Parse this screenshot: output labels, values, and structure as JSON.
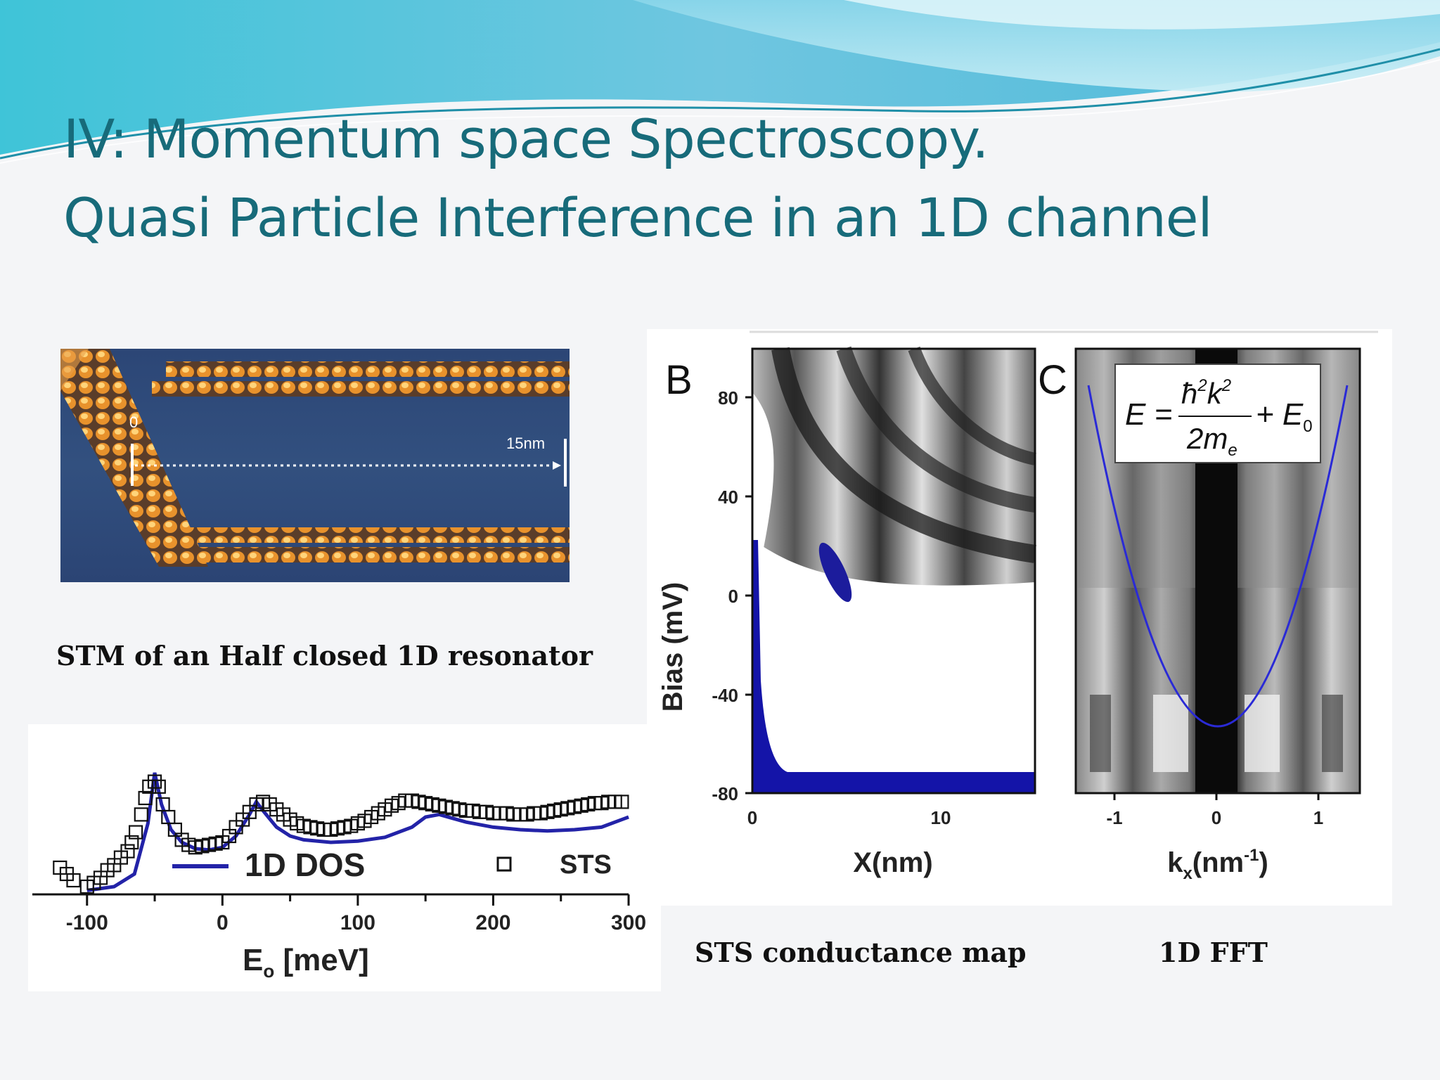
{
  "title": {
    "line1": "IV: Momentum space Spectroscopy.",
    "line2": "Quasi Particle Interference in an 1D channel"
  },
  "stm": {
    "caption": "STM of an Half closed 1D resonator",
    "label_zero": "0",
    "label_scale": "15nm"
  },
  "sts_map": {
    "caption": "STS conductance map",
    "panel_letter": "B",
    "xlabel": "X(nm)",
    "ylabel": "Bias (mV)",
    "x_ticks": [
      "0",
      "10"
    ],
    "y_ticks": [
      "80",
      "40",
      "0",
      "-40",
      "-80"
    ]
  },
  "fft": {
    "caption": "1D FFT",
    "panel_letter": "C",
    "xlabel": "kx(nm-1)",
    "x_ticks": [
      "-1",
      "0",
      "1"
    ],
    "equation": "E = ħ²k²/2mₑ + E₀"
  },
  "chart_data": [
    {
      "type": "line",
      "xlabel": "Eo [meV]",
      "ylabel": "",
      "xlim": [
        -130,
        300
      ],
      "x_ticks": [
        "-100",
        "0",
        "100",
        "200",
        "300"
      ],
      "legend_position": "inside-top",
      "series": [
        {
          "name": "1D DOS",
          "style": "line",
          "color": "#2323a8",
          "x": [
            -100,
            -80,
            -65,
            -55,
            -50,
            -45,
            -38,
            -30,
            -20,
            -10,
            0,
            10,
            20,
            25,
            30,
            40,
            50,
            60,
            80,
            100,
            120,
            140,
            150,
            160,
            180,
            200,
            220,
            240,
            260,
            280,
            300
          ],
          "y": [
            0.02,
            0.05,
            0.15,
            0.55,
            0.95,
            0.7,
            0.5,
            0.4,
            0.35,
            0.34,
            0.36,
            0.45,
            0.62,
            0.72,
            0.65,
            0.52,
            0.45,
            0.42,
            0.4,
            0.41,
            0.44,
            0.52,
            0.6,
            0.62,
            0.56,
            0.52,
            0.5,
            0.49,
            0.5,
            0.52,
            0.6
          ]
        },
        {
          "name": "STS",
          "style": "square-markers",
          "color": "#111111",
          "x": [
            -120,
            -115,
            -110,
            -100,
            -95,
            -90,
            -85,
            -80,
            -75,
            -70,
            -67,
            -64,
            -60,
            -57,
            -54,
            -50,
            -47,
            -44,
            -40,
            -35,
            -30,
            -25,
            -20,
            -15,
            -10,
            -5,
            0,
            5,
            10,
            15,
            20,
            25,
            30,
            35,
            40,
            45,
            50,
            55,
            60,
            65,
            70,
            75,
            80,
            85,
            90,
            95,
            100,
            105,
            110,
            115,
            120,
            125,
            130,
            135,
            140,
            145,
            150,
            155,
            160,
            165,
            170,
            175,
            180,
            185,
            190,
            195,
            200,
            205,
            210,
            215,
            220,
            225,
            230,
            235,
            240,
            245,
            250,
            255,
            260,
            265,
            270,
            275,
            280,
            285,
            290,
            295
          ],
          "y": [
            0.2,
            0.15,
            0.1,
            0.05,
            0.08,
            0.12,
            0.18,
            0.22,
            0.28,
            0.33,
            0.4,
            0.48,
            0.62,
            0.75,
            0.84,
            0.88,
            0.84,
            0.7,
            0.6,
            0.5,
            0.42,
            0.38,
            0.36,
            0.37,
            0.38,
            0.39,
            0.4,
            0.45,
            0.52,
            0.58,
            0.64,
            0.7,
            0.72,
            0.7,
            0.66,
            0.62,
            0.58,
            0.55,
            0.53,
            0.52,
            0.51,
            0.5,
            0.5,
            0.51,
            0.52,
            0.53,
            0.55,
            0.57,
            0.6,
            0.63,
            0.66,
            0.69,
            0.71,
            0.73,
            0.73,
            0.72,
            0.71,
            0.7,
            0.69,
            0.68,
            0.67,
            0.66,
            0.65,
            0.65,
            0.64,
            0.64,
            0.63,
            0.63,
            0.63,
            0.62,
            0.62,
            0.62,
            0.63,
            0.63,
            0.64,
            0.65,
            0.66,
            0.67,
            0.68,
            0.69,
            0.7,
            0.71,
            0.71,
            0.72,
            0.72,
            0.72
          ]
        }
      ]
    },
    {
      "type": "heatmap",
      "xlabel": "X(nm)",
      "ylabel": "Bias (mV)",
      "xlim": [
        0,
        15
      ],
      "ylim": [
        -80,
        100
      ],
      "colormap": "grayscale with blue saturation"
    },
    {
      "type": "heatmap",
      "xlabel": "kx(nm-1)",
      "ylabel": "",
      "xlim": [
        -1.4,
        1.4
      ],
      "ylim": [
        -80,
        100
      ],
      "curve": {
        "name": "",
        "color": "#2a2ad6",
        "k_min_energy_mV": -46,
        "k_at_top": 1.3,
        "energy_at_top_mV": 80
      }
    }
  ]
}
